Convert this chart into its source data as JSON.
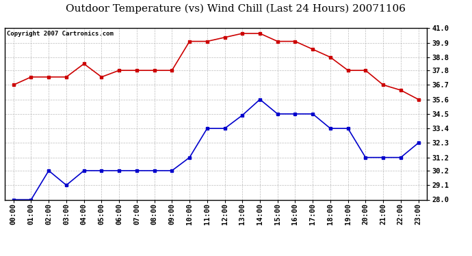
{
  "title": "Outdoor Temperature (vs) Wind Chill (Last 24 Hours) 20071106",
  "copyright": "Copyright 2007 Cartronics.com",
  "x_labels": [
    "00:00",
    "01:00",
    "02:00",
    "03:00",
    "04:00",
    "05:00",
    "06:00",
    "07:00",
    "08:00",
    "09:00",
    "10:00",
    "11:00",
    "12:00",
    "13:00",
    "14:00",
    "15:00",
    "16:00",
    "17:00",
    "18:00",
    "19:00",
    "20:00",
    "21:00",
    "22:00",
    "23:00"
  ],
  "temp_data": [
    36.7,
    37.3,
    37.3,
    37.3,
    38.3,
    37.3,
    37.8,
    37.8,
    37.8,
    37.8,
    40.0,
    40.0,
    40.3,
    40.6,
    40.6,
    40.0,
    40.0,
    39.4,
    38.8,
    37.8,
    37.8,
    36.7,
    36.3,
    35.6
  ],
  "wind_chill_data": [
    28.0,
    28.0,
    30.2,
    29.1,
    30.2,
    30.2,
    30.2,
    30.2,
    30.2,
    30.2,
    31.2,
    33.4,
    33.4,
    34.4,
    35.6,
    34.5,
    34.5,
    34.5,
    33.4,
    33.4,
    31.2,
    31.2,
    31.2,
    32.3
  ],
  "temp_color": "#cc0000",
  "wind_chill_color": "#0000cc",
  "bg_color": "#ffffff",
  "plot_bg_color": "#ffffff",
  "grid_color": "#aaaaaa",
  "y_min": 28.0,
  "y_max": 41.0,
  "y_ticks": [
    28.0,
    29.1,
    30.2,
    31.2,
    32.3,
    33.4,
    34.5,
    35.6,
    36.7,
    37.8,
    38.8,
    39.9,
    41.0
  ],
  "title_fontsize": 11,
  "copyright_fontsize": 6.5,
  "tick_fontsize": 7.5,
  "marker": "s",
  "marker_size": 2.5,
  "linewidth": 1.2
}
